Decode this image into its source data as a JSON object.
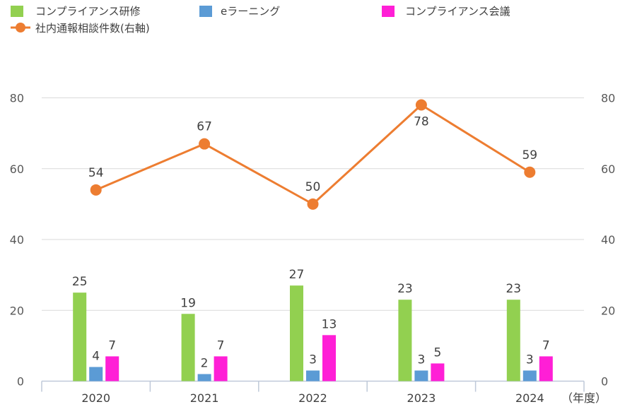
{
  "chart_data": {
    "type": "bar+line",
    "categories": [
      "2020",
      "2021",
      "2022",
      "2023",
      "2024"
    ],
    "x_unit_label": "（年度）",
    "series": [
      {
        "name": "コンプライアンス研修",
        "kind": "bar",
        "axis": "left",
        "color": "#92d050",
        "values": [
          25,
          19,
          27,
          23,
          23
        ]
      },
      {
        "name": "eラーニング",
        "kind": "bar",
        "axis": "left",
        "color": "#5b9bd5",
        "values": [
          4,
          2,
          3,
          3,
          3
        ]
      },
      {
        "name": "コンプライアンス会議",
        "kind": "bar",
        "axis": "left",
        "color": "#ff1fd6",
        "values": [
          7,
          7,
          13,
          5,
          7
        ]
      },
      {
        "name": "社内通報相談件数(右軸)",
        "kind": "line",
        "axis": "right",
        "color": "#ed7d31",
        "values": [
          54,
          67,
          50,
          78,
          59
        ]
      }
    ],
    "left_axis": {
      "ylim": [
        0,
        80
      ],
      "ticks": [
        0,
        20,
        40,
        60,
        80
      ]
    },
    "right_axis": {
      "ylim": [
        0,
        80
      ],
      "ticks": [
        0,
        20,
        40,
        60,
        80
      ]
    },
    "grid": true,
    "legend": "top"
  }
}
